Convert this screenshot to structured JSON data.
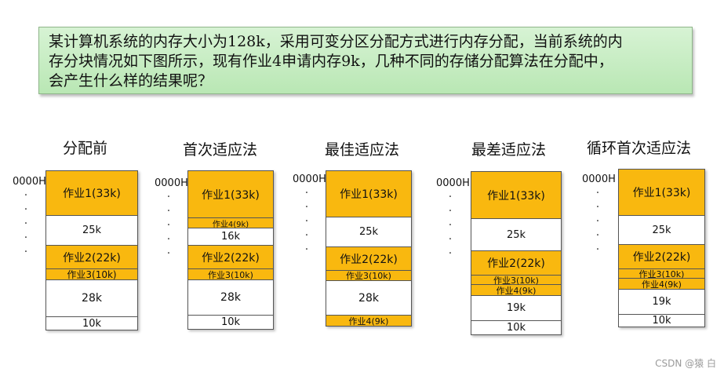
{
  "question": {
    "line1": "某计算机系统的内存大小为128k，采用可变分区分配方式进行内存分配，当前系统的内",
    "line2": "存分块情况如下图所示，现有作业4申请内存9k，几种不同的存储分配算法在分配中，",
    "line3": "会产生什么样的结果呢？"
  },
  "start_address": "0000H",
  "columns": [
    {
      "title": "分配前",
      "blocks": [
        {
          "label": "作业1(33k)",
          "type": "job"
        },
        {
          "label": "25k",
          "type": "free"
        },
        {
          "label": "作业2(22k)",
          "type": "job"
        },
        {
          "label": "作业3(10k)",
          "type": "job"
        },
        {
          "label": "28k",
          "type": "free"
        },
        {
          "label": "10k",
          "type": "free"
        }
      ]
    },
    {
      "title": "首次适应法",
      "blocks": [
        {
          "label": "作业1(33k)",
          "type": "job"
        },
        {
          "label": "作业4(9k)",
          "type": "job"
        },
        {
          "label": "16k",
          "type": "free"
        },
        {
          "label": "作业2(22k)",
          "type": "job"
        },
        {
          "label": "作业3(10k)",
          "type": "job"
        },
        {
          "label": "28k",
          "type": "free"
        },
        {
          "label": "10k",
          "type": "free"
        }
      ]
    },
    {
      "title": "最佳适应法",
      "blocks": [
        {
          "label": "作业1(33k)",
          "type": "job"
        },
        {
          "label": "25k",
          "type": "free"
        },
        {
          "label": "作业2(22k)",
          "type": "job"
        },
        {
          "label": "作业3(10k)",
          "type": "job"
        },
        {
          "label": "28k",
          "type": "free"
        },
        {
          "label": "作业4(9k)",
          "type": "job"
        }
      ]
    },
    {
      "title": "最差适应法",
      "blocks": [
        {
          "label": "作业1(33k)",
          "type": "job"
        },
        {
          "label": "25k",
          "type": "free"
        },
        {
          "label": "作业2(22k)",
          "type": "job"
        },
        {
          "label": "作业3(10k)",
          "type": "job"
        },
        {
          "label": "作业4(9k)",
          "type": "job"
        },
        {
          "label": "19k",
          "type": "free"
        },
        {
          "label": "10k",
          "type": "free"
        }
      ]
    },
    {
      "title": "循环首次适应法",
      "blocks": [
        {
          "label": "作业1(33k)",
          "type": "job"
        },
        {
          "label": "25k",
          "type": "free"
        },
        {
          "label": "作业2(22k)",
          "type": "job"
        },
        {
          "label": "作业3(10k)",
          "type": "job"
        },
        {
          "label": "作业4(9k)",
          "type": "job"
        },
        {
          "label": "19k",
          "type": "free"
        },
        {
          "label": "10k",
          "type": "free"
        }
      ]
    }
  ],
  "watermark": "CSDN @猿 白",
  "colors": {
    "job": "#f9b80f",
    "free": "#ffffff",
    "question_bg": "#c8edc4"
  }
}
